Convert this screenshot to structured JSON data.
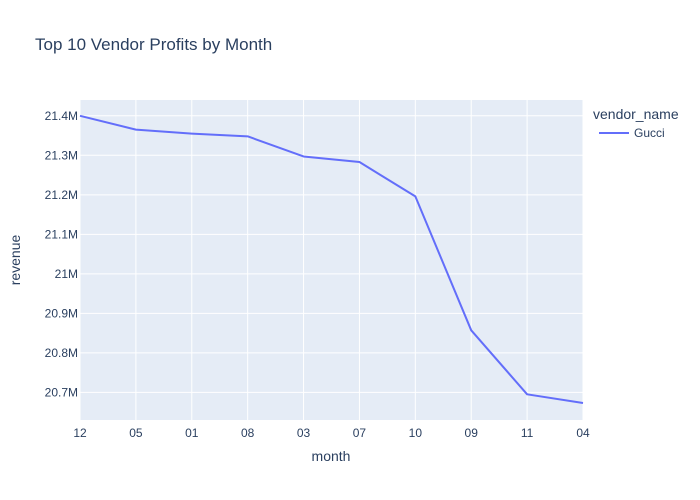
{
  "chart_data": {
    "type": "line",
    "title": "Top 10 Vendor Profits by Month",
    "xlabel": "month",
    "ylabel": "revenue",
    "categories": [
      "12",
      "05",
      "01",
      "08",
      "03",
      "07",
      "10",
      "09",
      "11",
      "04"
    ],
    "series": [
      {
        "name": "Gucci",
        "color": "#636efa",
        "values": [
          21400000,
          21365000,
          21355000,
          21348000,
          21297000,
          21283000,
          21196000,
          20857000,
          20695000,
          20673000
        ]
      }
    ],
    "ylim": [
      20630000,
      21440000
    ],
    "yticks": [
      20700000,
      20800000,
      20900000,
      21000000,
      21100000,
      21200000,
      21300000,
      21400000
    ],
    "ytick_labels": [
      "20.7M",
      "20.8M",
      "20.9M",
      "21M",
      "21.1M",
      "21.2M",
      "21.3M",
      "21.4M"
    ],
    "grid": true,
    "legend": {
      "title": "vendor_name",
      "placement": "right"
    },
    "colors": {
      "plot_bg": "#e5ecf6",
      "grid": "#ffffff",
      "text": "#2a3f5f"
    }
  }
}
